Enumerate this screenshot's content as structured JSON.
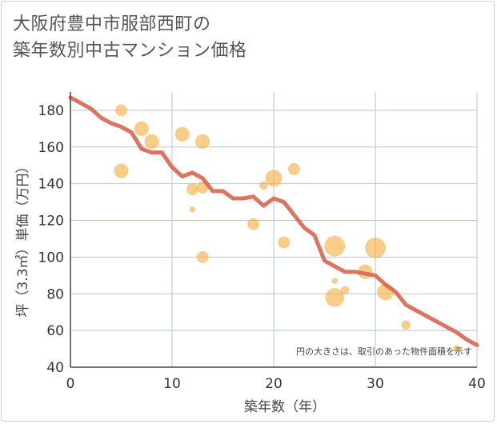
{
  "title_lines": [
    "大阪府豊中市服部西町の",
    "築年数別中古マンション価格"
  ],
  "chart_data": {
    "type": "scatter",
    "title": "大阪府豊中市服部西町の築年数別中古マンション価格",
    "xlabel": "築年数（年）",
    "ylabel": "坪（3.3㎡）単価（万円）",
    "xlim": [
      0,
      40
    ],
    "ylim": [
      40,
      190
    ],
    "x_ticks": [
      0,
      10,
      20,
      30,
      40
    ],
    "y_ticks": [
      40,
      60,
      80,
      100,
      120,
      140,
      160,
      180
    ],
    "grid": true,
    "note": "円の大きさは、取引のあった物件面積を示す",
    "colors": {
      "bubble": "#f3b24a",
      "trend": "#d9654f",
      "grid": "#b8c4d6",
      "axis": "#444444"
    },
    "bubbles": [
      {
        "x": 5,
        "y": 180,
        "size": 2
      },
      {
        "x": 5,
        "y": 147,
        "size": 3
      },
      {
        "x": 7,
        "y": 170,
        "size": 3
      },
      {
        "x": 8,
        "y": 163,
        "size": 3
      },
      {
        "x": 11,
        "y": 167,
        "size": 3
      },
      {
        "x": 12,
        "y": 137,
        "size": 2
      },
      {
        "x": 12,
        "y": 126,
        "size": 0.5
      },
      {
        "x": 13,
        "y": 163,
        "size": 3
      },
      {
        "x": 13,
        "y": 138,
        "size": 2
      },
      {
        "x": 13,
        "y": 100,
        "size": 2
      },
      {
        "x": 18,
        "y": 118,
        "size": 2
      },
      {
        "x": 19,
        "y": 139,
        "size": 1
      },
      {
        "x": 20,
        "y": 143,
        "size": 4
      },
      {
        "x": 21,
        "y": 108,
        "size": 2
      },
      {
        "x": 22,
        "y": 148,
        "size": 2
      },
      {
        "x": 26,
        "y": 106,
        "size": 6
      },
      {
        "x": 26,
        "y": 87,
        "size": 0.5
      },
      {
        "x": 26,
        "y": 78,
        "size": 5
      },
      {
        "x": 27,
        "y": 82,
        "size": 1
      },
      {
        "x": 29,
        "y": 92,
        "size": 3
      },
      {
        "x": 30,
        "y": 105,
        "size": 6
      },
      {
        "x": 31,
        "y": 81,
        "size": 4
      },
      {
        "x": 33,
        "y": 63,
        "size": 1.2
      },
      {
        "x": 38,
        "y": 50,
        "size": 0.8
      }
    ],
    "trend": {
      "x": [
        0,
        1,
        2,
        3,
        4,
        5,
        6,
        7,
        8,
        9,
        10,
        11,
        12,
        13,
        14,
        15,
        16,
        17,
        18,
        19,
        20,
        21,
        22,
        23,
        24,
        25,
        26,
        27,
        28,
        29,
        30,
        31,
        32,
        33,
        34,
        35,
        36,
        37,
        38,
        39,
        40
      ],
      "y": [
        187,
        184,
        181,
        176,
        173,
        171,
        168,
        159,
        157,
        157,
        149,
        144,
        146,
        143,
        136,
        136,
        132,
        132,
        133,
        128,
        132,
        130,
        123,
        116,
        112,
        98,
        95,
        92,
        92,
        91,
        90,
        85,
        81,
        74,
        71,
        68,
        65,
        62,
        59,
        55,
        52
      ]
    }
  }
}
